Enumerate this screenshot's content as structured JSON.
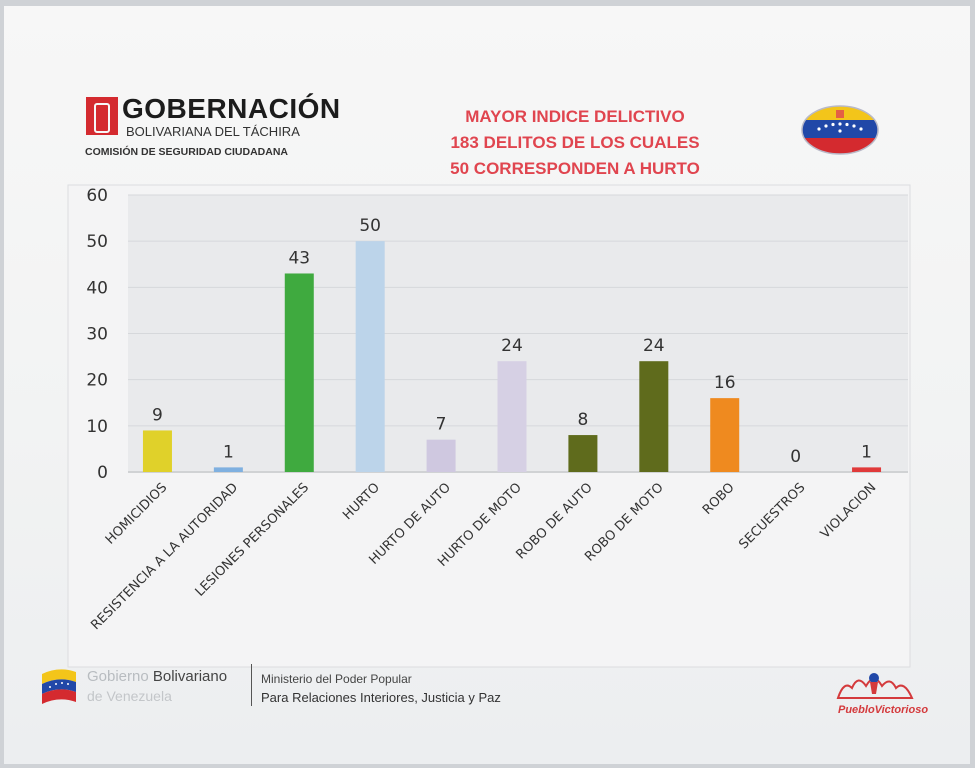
{
  "header": {
    "org_title": "GOBERNACIÓN",
    "org_subtitle": "BOLIVARIANA DEL TÁCHIRA",
    "org_commission": "COMISIÓN DE SEGURIDAD CIUDADANA",
    "headline": [
      "MAYOR INDICE DELICTIVO",
      "183 DELITOS  DE LOS CUALES",
      "50 CORRESPONDEN A HURTO"
    ]
  },
  "chart_data": {
    "type": "bar",
    "categories": [
      "HOMICIDIOS",
      "RESISTENCIA A LA AUTORIDAD",
      "LESIONES PERSONALES",
      "HURTO",
      "HURTO DE AUTO",
      "HURTO DE MOTO",
      "ROBO DE AUTO",
      "ROBO DE MOTO",
      "ROBO",
      "SECUESTROS",
      "VIOLACION"
    ],
    "values": [
      9,
      1,
      43,
      50,
      7,
      24,
      8,
      24,
      16,
      0,
      1
    ],
    "data_labels": [
      "9",
      "1",
      "43",
      "50",
      "7",
      "24",
      "8",
      "24",
      "16",
      "0",
      "1"
    ],
    "colors": [
      "#e0d12a",
      "#7fb0e0",
      "#3faa3f",
      "#bcd4ea",
      "#cfc8e0",
      "#d6d0e4",
      "#5f6b1c",
      "#5f6b1c",
      "#ef8a1f",
      "#cccccc",
      "#e03a3a"
    ],
    "yticks": [
      0,
      10,
      20,
      30,
      40,
      50,
      60
    ],
    "ylim": [
      0,
      60
    ],
    "grid": true,
    "legend": "none"
  },
  "footer": {
    "gob_prefix": "Gobierno ",
    "gob_bold": "Bolivariano",
    "gob_country": "de Venezuela",
    "ministry_line1": "Ministerio del Poder Popular",
    "ministry_line2": "Para Relaciones Interiores, Justicia y Paz",
    "right_logo_text": "PuebloVictorioso"
  },
  "colors": {
    "accent_red": "#e0454f",
    "brand_red": "#d42a2f"
  }
}
